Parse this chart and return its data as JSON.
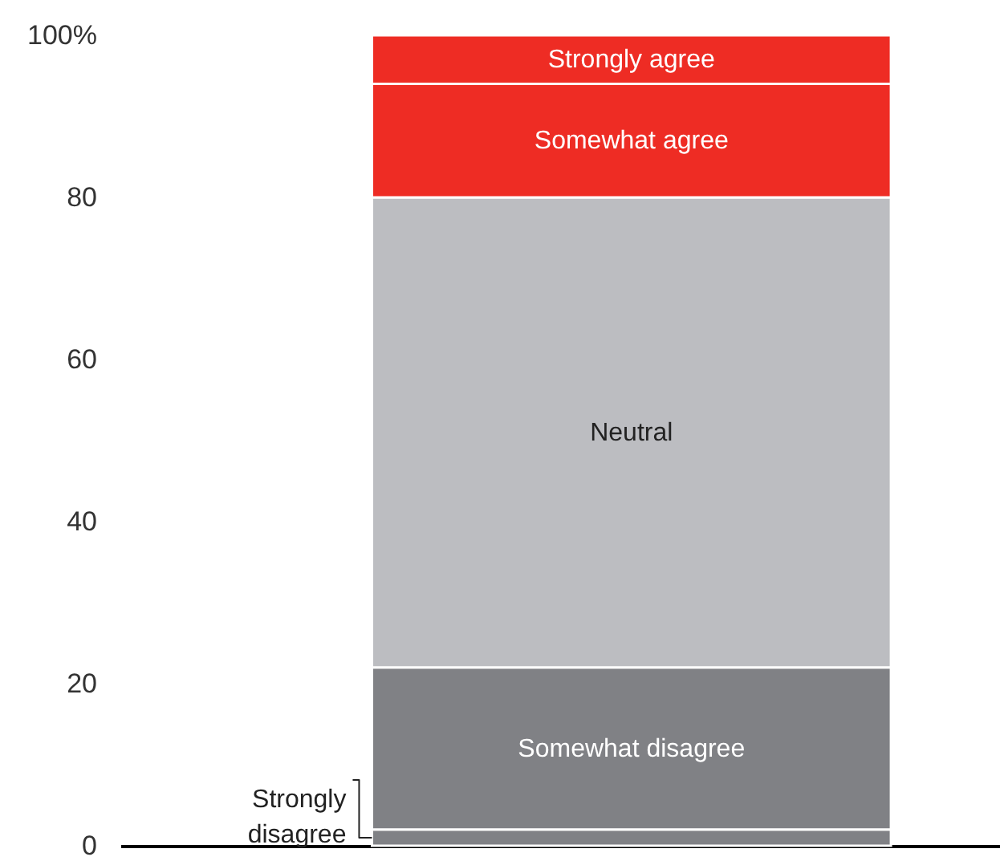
{
  "chart_data": {
    "type": "bar",
    "stacked": true,
    "categories": [
      null
    ],
    "series": [
      {
        "name": "Strongly disagree",
        "color": "#808185",
        "values": [
          2
        ]
      },
      {
        "name": "Somewhat disagree",
        "color": "#808185",
        "values": [
          20
        ]
      },
      {
        "name": "Neutral",
        "color": "#bcbdc1",
        "values": [
          58
        ]
      },
      {
        "name": "Somewhat agree",
        "color": "#ee2c24",
        "values": [
          14
        ]
      },
      {
        "name": "Strongly agree",
        "color": "#ee2c24",
        "values": [
          6
        ]
      }
    ],
    "ylim": [
      0,
      100
    ],
    "yticks": [
      0,
      20,
      40,
      60,
      80,
      {
        "value": 100,
        "label": "100%"
      }
    ],
    "grid": false
  }
}
